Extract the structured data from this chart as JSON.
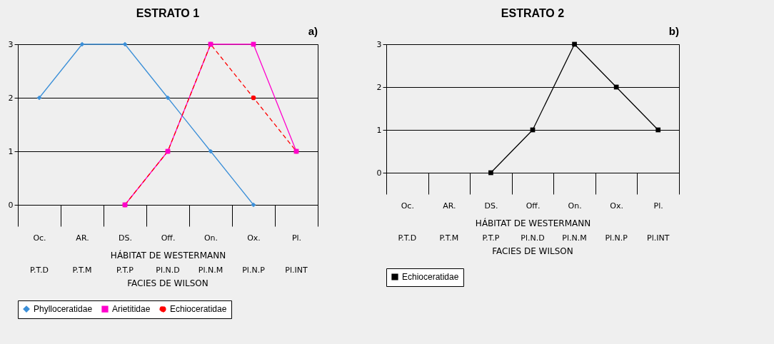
{
  "chart_data": [
    {
      "type": "line",
      "title": "ESTRATO  1",
      "xlabel": "HÁBITAT  DE  WESTERMANN",
      "categories": [
        "Oc.",
        "AR.",
        "DS.",
        "Off.",
        "On.",
        "Ox.",
        "Pl."
      ],
      "annotations": [
        "a)",
        "P.T.D",
        "P.T.M",
        "P.T.P",
        "Pl.N.D",
        "Pl.N.M",
        "Pl.N.P",
        "Pl.INT",
        "FACIES  DE  WILSON"
      ],
      "series": [
        {
          "name": "Phylloceratidae",
          "color": "#3b8fd8",
          "marker": "diamond",
          "line_style": "solid",
          "values": [
            2,
            3,
            3,
            2,
            1,
            0,
            null
          ]
        },
        {
          "name": "Arietitidae",
          "color": "#ff00cc",
          "marker": "square",
          "line_style": "solid",
          "values": [
            null,
            null,
            0,
            1,
            3,
            3,
            1
          ]
        },
        {
          "name": "Echioceratidae",
          "color": "#ff0000",
          "marker": "circle",
          "line_style": "dashed",
          "values": [
            null,
            null,
            0,
            1,
            3,
            2,
            1
          ]
        }
      ],
      "ylim": [
        0,
        3
      ],
      "yticks": [
        0,
        1,
        2,
        3
      ],
      "grid": "y",
      "legend": "bottom"
    },
    {
      "type": "line",
      "title": "ESTRATO  2",
      "xlabel": "HÁBITAT  DE  WESTERMANN",
      "categories": [
        "Oc.",
        "AR.",
        "DS.",
        "Off.",
        "On.",
        "Ox.",
        "Pl."
      ],
      "annotations": [
        "b)",
        "P.T.D",
        "P.T.M",
        "P.T.P",
        "Pl.N.D",
        "Pl.N.M",
        "Pl.N.P",
        "Pl.INT",
        "FACIES  DE  WILSON"
      ],
      "series": [
        {
          "name": "Echioceratidae",
          "color": "#000000",
          "marker": "square",
          "line_style": "solid",
          "values": [
            null,
            null,
            0,
            1,
            3,
            2,
            1
          ]
        }
      ],
      "ylim": [
        0,
        3
      ],
      "yticks": [
        0,
        1,
        2,
        3
      ],
      "grid": "y",
      "legend": "bottom"
    }
  ]
}
